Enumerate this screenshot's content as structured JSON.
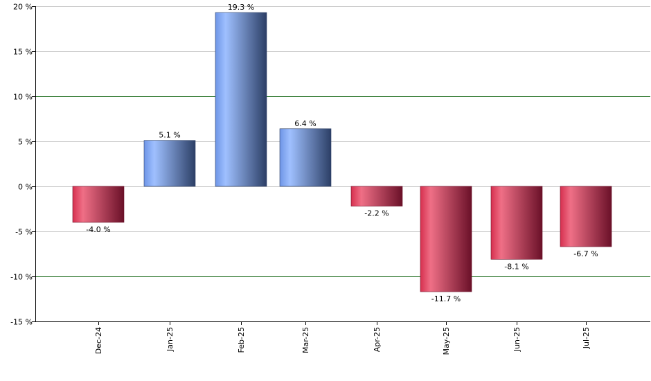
{
  "chart_data": {
    "type": "bar",
    "categories": [
      "Dec-24",
      "Jan-25",
      "Feb-25",
      "Mar-25",
      "Apr-25",
      "May-25",
      "Jun-25",
      "Jul-25"
    ],
    "values": [
      -4.0,
      5.1,
      19.3,
      6.4,
      -2.2,
      -11.7,
      -8.1,
      -6.7
    ],
    "data_labels": [
      "-4.0 %",
      "5.1 %",
      "19.3 %",
      "6.4 %",
      "-2.2 %",
      "-11.7 %",
      "-8.1 %",
      "-6.7 %"
    ],
    "ylim": [
      -15,
      20
    ],
    "yticks": [
      20,
      15,
      10,
      5,
      0,
      -5,
      -10,
      -15
    ],
    "ytick_labels": [
      "20 %",
      "15 %",
      "10 %",
      "5 %",
      "0 %",
      "-5 %",
      "-10 %",
      "-15 %"
    ],
    "emphasized_gridlines": [
      10,
      -10
    ],
    "grid": true,
    "legend": "none",
    "title": "",
    "xlabel": "",
    "ylabel": "",
    "colors": {
      "positive_light": "#9fc0ff",
      "positive_mid": "#6e95e6",
      "positive_dark": "#2c3f66",
      "negative_light": "#ef6f86",
      "negative_mid": "#d6304f",
      "negative_dark": "#6a1028",
      "grid": "#c8c8c8",
      "grid_emphasis": "#1a6b1a",
      "axis": "#000000"
    }
  }
}
